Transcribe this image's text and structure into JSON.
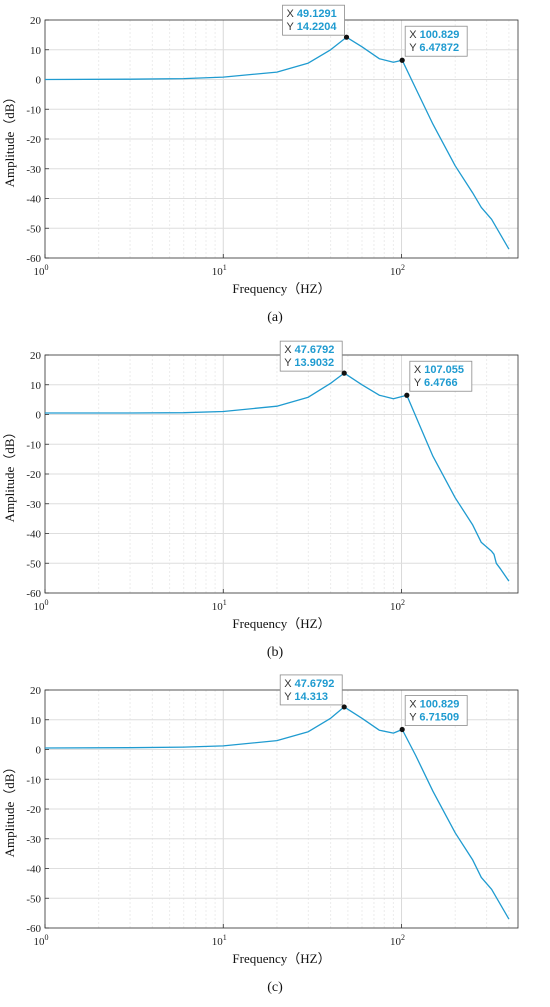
{
  "chart_data": [
    {
      "type": "line",
      "xscale": "log",
      "xlim": [
        1,
        450
      ],
      "ylim": [
        -60,
        20
      ],
      "xlabel": "Frequency（HZ）",
      "ylabel": "Amplitude（dB）",
      "grid": true,
      "line_color": "#1f9bd0",
      "x_ticks": [
        "10^0",
        "10^1",
        "10^2"
      ],
      "y_ticks": [
        20,
        10,
        0,
        -10,
        -20,
        -30,
        -40,
        -50,
        -60
      ],
      "series": [
        {
          "x": [
            1,
            3,
            6,
            10,
            20,
            30,
            40,
            49.1291,
            60,
            75,
            90,
            100.829,
            120,
            150,
            200,
            250,
            280,
            320,
            400
          ],
          "y": [
            0,
            0.1,
            0.3,
            0.8,
            2.5,
            5.5,
            10,
            14.2204,
            11,
            7,
            5.8,
            6.47872,
            -3,
            -15,
            -29,
            -38,
            -43,
            -47,
            -57
          ]
        }
      ],
      "datatips": [
        {
          "x_label": "X",
          "x_value": "49.1291",
          "y_label": "Y",
          "y_value": "14.2204",
          "x": 49.1291,
          "y": 14.2204
        },
        {
          "x_label": "X",
          "x_value": "100.829",
          "y_label": "Y",
          "y_value": "6.47872",
          "x": 100.829,
          "y": 6.47872
        }
      ],
      "caption": "(a)"
    },
    {
      "type": "line",
      "xscale": "log",
      "xlim": [
        1,
        450
      ],
      "ylim": [
        -60,
        20
      ],
      "xlabel": "Frequency（HZ）",
      "ylabel": "Amplitude（dB）",
      "grid": true,
      "line_color": "#1f9bd0",
      "x_ticks": [
        "10^0",
        "10^1",
        "10^2"
      ],
      "y_ticks": [
        20,
        10,
        0,
        -10,
        -20,
        -30,
        -40,
        -50,
        -60
      ],
      "series": [
        {
          "x": [
            1,
            3,
            6,
            10,
            20,
            30,
            40,
            47.6792,
            60,
            75,
            90,
            107.055,
            125,
            150,
            200,
            250,
            280,
            320,
            330,
            340,
            360,
            400
          ],
          "y": [
            0.5,
            0.5,
            0.6,
            1,
            2.8,
            5.8,
            10.5,
            13.9032,
            10,
            6.5,
            5.3,
            6.4766,
            -3,
            -14,
            -28,
            -37,
            -43,
            -46,
            -47,
            -50,
            -52,
            -56
          ]
        }
      ],
      "datatips": [
        {
          "x_label": "X",
          "x_value": "47.6792",
          "y_label": "Y",
          "y_value": "13.9032",
          "x": 47.6792,
          "y": 13.9032
        },
        {
          "x_label": "X",
          "x_value": "107.055",
          "y_label": "Y",
          "y_value": "6.4766",
          "x": 107.055,
          "y": 6.4766
        }
      ],
      "caption": "(b)"
    },
    {
      "type": "line",
      "xscale": "log",
      "xlim": [
        1,
        450
      ],
      "ylim": [
        -60,
        20
      ],
      "xlabel": "Frequency（HZ）",
      "ylabel": "Amplitude（dB）",
      "grid": true,
      "line_color": "#1f9bd0",
      "x_ticks": [
        "10^0",
        "10^1",
        "10^2"
      ],
      "y_ticks": [
        20,
        10,
        0,
        -10,
        -20,
        -30,
        -40,
        -50,
        -60
      ],
      "series": [
        {
          "x": [
            1,
            3,
            6,
            10,
            20,
            30,
            40,
            47.6792,
            60,
            75,
            90,
            100.829,
            120,
            150,
            200,
            250,
            280,
            320,
            400
          ],
          "y": [
            0.5,
            0.6,
            0.8,
            1.2,
            3,
            6,
            10.5,
            14.313,
            10.5,
            6.5,
            5.5,
            6.71509,
            -2,
            -14,
            -28,
            -37,
            -43,
            -47,
            -57
          ]
        }
      ],
      "datatips": [
        {
          "x_label": "X",
          "x_value": "47.6792",
          "y_label": "Y",
          "y_value": "14.313",
          "x": 47.6792,
          "y": 14.313
        },
        {
          "x_label": "X",
          "x_value": "100.829",
          "y_label": "Y",
          "y_value": "6.71509",
          "x": 100.829,
          "y": 6.71509
        }
      ],
      "caption": "(c)"
    }
  ]
}
